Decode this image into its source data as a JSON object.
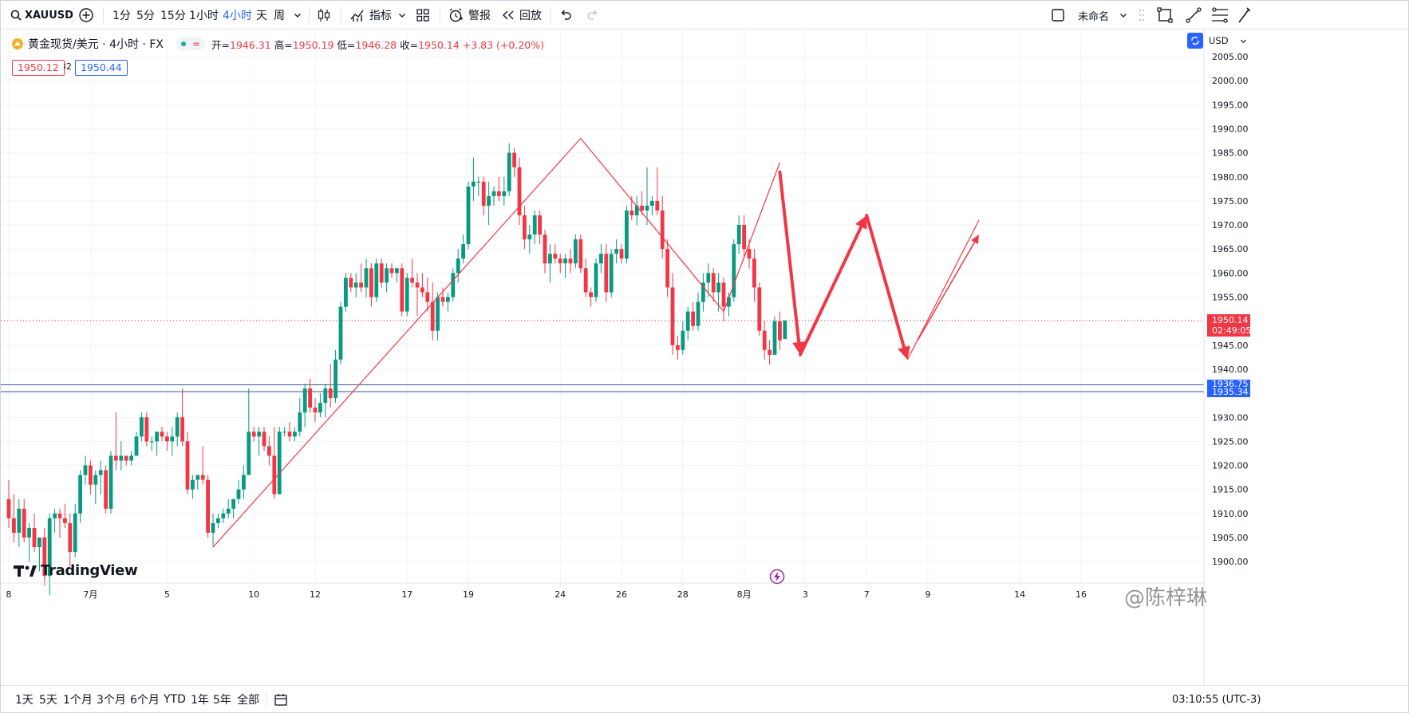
{
  "toolbar": {
    "symbol": "XAUUSD",
    "intervals": [
      "1分",
      "5分",
      "15分",
      "1小时",
      "4小时",
      "天",
      "周"
    ],
    "active_interval": "4小时",
    "indicators_label": "指标",
    "alert_label": "警报",
    "replay_label": "回放",
    "layout_name": "未命名"
  },
  "legend": {
    "title": "黄金现货/美元 · 4小时 · FX",
    "open_label": "开",
    "open": "1946.31",
    "high_label": "高",
    "high": "1950.19",
    "low_label": "低",
    "low": "1946.28",
    "close_label": "收",
    "close": "1950.14",
    "change": "+3.83 (+0.20%)",
    "bid": "1950.12",
    "spread": "32",
    "ask": "1950.44"
  },
  "scale": {
    "currency": "USD",
    "last_price_label": "1950.14",
    "countdown": "02:49:05",
    "hline1_label": "1936.75",
    "hline2_label": "1935.34"
  },
  "bottom": {
    "ranges": [
      "1天",
      "5天",
      "1个月",
      "3个月",
      "6个月",
      "YTD",
      "1年",
      "5年",
      "全部"
    ],
    "clock": "03:10:55 (UTC-3)"
  },
  "branding": {
    "logo_text": "TradingView",
    "author_mark": "@陈梓琳"
  },
  "colors": {
    "up": "#089981",
    "down": "#f23645",
    "accent": "#2962ff",
    "drawing": "#f23645"
  },
  "chart_data": {
    "type": "candlestick",
    "symbol": "XAUUSD",
    "timeframe": "4h",
    "y_ticks": [
      2005,
      2000,
      1995,
      1990,
      1985,
      1980,
      1975,
      1970,
      1965,
      1960,
      1955,
      1950,
      1945,
      1940,
      1935,
      1930,
      1925,
      1920,
      1915,
      1910,
      1905,
      1900
    ],
    "x_ticks": [
      {
        "label": "8",
        "bar": 0
      },
      {
        "label": "7月",
        "bar": 16
      },
      {
        "label": "5",
        "bar": 31
      },
      {
        "label": "10",
        "bar": 48
      },
      {
        "label": "12",
        "bar": 60
      },
      {
        "label": "17",
        "bar": 78
      },
      {
        "label": "19",
        "bar": 90
      },
      {
        "label": "24",
        "bar": 108
      },
      {
        "label": "26",
        "bar": 120
      },
      {
        "label": "28",
        "bar": 132
      },
      {
        "label": "8月",
        "bar": 144
      },
      {
        "label": "3",
        "bar": 156
      },
      {
        "label": "7",
        "bar": 168
      },
      {
        "label": "9",
        "bar": 180
      },
      {
        "label": "14",
        "bar": 198
      },
      {
        "label": "16",
        "bar": 210
      }
    ],
    "candles": [
      {
        "o": 1913.0,
        "h": 1917.0,
        "l": 1907.0,
        "c": 1909.0
      },
      {
        "o": 1909.0,
        "h": 1914.0,
        "l": 1904.0,
        "c": 1906.0
      },
      {
        "o": 1906.0,
        "h": 1913.0,
        "l": 1903.0,
        "c": 1911.0
      },
      {
        "o": 1911.0,
        "h": 1913.0,
        "l": 1904.0,
        "c": 1905.0
      },
      {
        "o": 1905.0,
        "h": 1908.0,
        "l": 1900.0,
        "c": 1907.0
      },
      {
        "o": 1907.0,
        "h": 1910.0,
        "l": 1902.0,
        "c": 1903.0
      },
      {
        "o": 1903.0,
        "h": 1905.0,
        "l": 1898.0,
        "c": 1905.0
      },
      {
        "o": 1905.0,
        "h": 1907.0,
        "l": 1895.0,
        "c": 1897.0
      },
      {
        "o": 1897.0,
        "h": 1910.0,
        "l": 1893.0,
        "c": 1909.0
      },
      {
        "o": 1909.0,
        "h": 1911.0,
        "l": 1906.0,
        "c": 1910.0
      },
      {
        "o": 1910.0,
        "h": 1911.0,
        "l": 1905.0,
        "c": 1909.0
      },
      {
        "o": 1909.0,
        "h": 1912.0,
        "l": 1907.0,
        "c": 1908.0
      },
      {
        "o": 1908.0,
        "h": 1910.0,
        "l": 1899.0,
        "c": 1902.0
      },
      {
        "o": 1902.0,
        "h": 1912.0,
        "l": 1901.0,
        "c": 1910.0
      },
      {
        "o": 1910.0,
        "h": 1919.0,
        "l": 1908.0,
        "c": 1918.0
      },
      {
        "o": 1918.0,
        "h": 1922.0,
        "l": 1916.0,
        "c": 1920.0
      },
      {
        "o": 1920.0,
        "h": 1921.0,
        "l": 1914.0,
        "c": 1916.0
      },
      {
        "o": 1916.0,
        "h": 1919.0,
        "l": 1912.0,
        "c": 1918.0
      },
      {
        "o": 1918.0,
        "h": 1921.0,
        "l": 1914.0,
        "c": 1919.0
      },
      {
        "o": 1919.0,
        "h": 1920.0,
        "l": 1910.0,
        "c": 1911.0
      },
      {
        "o": 1911.0,
        "h": 1923.0,
        "l": 1910.0,
        "c": 1922.0
      },
      {
        "o": 1922.0,
        "h": 1931.0,
        "l": 1919.0,
        "c": 1921.0
      },
      {
        "o": 1921.0,
        "h": 1925.0,
        "l": 1919.0,
        "c": 1922.0
      },
      {
        "o": 1922.0,
        "h": 1922.0,
        "l": 1920.0,
        "c": 1921.0
      },
      {
        "o": 1921.0,
        "h": 1923.0,
        "l": 1920.0,
        "c": 1922.0
      },
      {
        "o": 1922.0,
        "h": 1927.0,
        "l": 1922.0,
        "c": 1926.0
      },
      {
        "o": 1926.0,
        "h": 1931.0,
        "l": 1925.0,
        "c": 1930.0
      },
      {
        "o": 1930.0,
        "h": 1931.0,
        "l": 1924.0,
        "c": 1925.0
      },
      {
        "o": 1925.0,
        "h": 1926.0,
        "l": 1923.0,
        "c": 1925.0
      },
      {
        "o": 1925.0,
        "h": 1927.0,
        "l": 1922.0,
        "c": 1927.0
      },
      {
        "o": 1927.0,
        "h": 1928.0,
        "l": 1925.0,
        "c": 1926.0
      },
      {
        "o": 1926.0,
        "h": 1927.0,
        "l": 1923.0,
        "c": 1925.0
      },
      {
        "o": 1925.0,
        "h": 1928.0,
        "l": 1922.0,
        "c": 1926.0
      },
      {
        "o": 1926.0,
        "h": 1931.0,
        "l": 1924.0,
        "c": 1930.0
      },
      {
        "o": 1930.0,
        "h": 1936.0,
        "l": 1924.0,
        "c": 1925.0
      },
      {
        "o": 1925.0,
        "h": 1927.0,
        "l": 1914.0,
        "c": 1915.0
      },
      {
        "o": 1915.0,
        "h": 1918.0,
        "l": 1913.0,
        "c": 1917.0
      },
      {
        "o": 1917.0,
        "h": 1918.0,
        "l": 1915.0,
        "c": 1918.0
      },
      {
        "o": 1918.0,
        "h": 1924.0,
        "l": 1916.0,
        "c": 1917.0
      },
      {
        "o": 1917.0,
        "h": 1918.0,
        "l": 1905.0,
        "c": 1906.0
      },
      {
        "o": 1906.0,
        "h": 1910.0,
        "l": 1903.0,
        "c": 1908.0
      },
      {
        "o": 1908.0,
        "h": 1910.0,
        "l": 1907.0,
        "c": 1909.0
      },
      {
        "o": 1909.0,
        "h": 1911.0,
        "l": 1908.0,
        "c": 1910.0
      },
      {
        "o": 1910.0,
        "h": 1913.0,
        "l": 1909.0,
        "c": 1911.0
      },
      {
        "o": 1911.0,
        "h": 1913.0,
        "l": 1909.0,
        "c": 1913.0
      },
      {
        "o": 1913.0,
        "h": 1917.0,
        "l": 1912.0,
        "c": 1915.0
      },
      {
        "o": 1915.0,
        "h": 1920.0,
        "l": 1913.0,
        "c": 1918.0
      },
      {
        "o": 1918.0,
        "h": 1936.0,
        "l": 1918.0,
        "c": 1927.0
      },
      {
        "o": 1927.0,
        "h": 1928.0,
        "l": 1925.0,
        "c": 1926.0
      },
      {
        "o": 1926.0,
        "h": 1928.0,
        "l": 1922.0,
        "c": 1927.0
      },
      {
        "o": 1927.0,
        "h": 1928.0,
        "l": 1923.0,
        "c": 1924.0
      },
      {
        "o": 1924.0,
        "h": 1926.0,
        "l": 1920.0,
        "c": 1922.0
      },
      {
        "o": 1922.0,
        "h": 1928.0,
        "l": 1913.0,
        "c": 1914.0
      },
      {
        "o": 1914.0,
        "h": 1928.0,
        "l": 1914.0,
        "c": 1927.0
      },
      {
        "o": 1927.0,
        "h": 1928.0,
        "l": 1926.0,
        "c": 1927.0
      },
      {
        "o": 1927.0,
        "h": 1929.0,
        "l": 1925.0,
        "c": 1926.0
      },
      {
        "o": 1926.0,
        "h": 1928.0,
        "l": 1925.0,
        "c": 1927.0
      },
      {
        "o": 1927.0,
        "h": 1934.0,
        "l": 1926.0,
        "c": 1931.0
      },
      {
        "o": 1931.0,
        "h": 1937.0,
        "l": 1928.0,
        "c": 1936.0
      },
      {
        "o": 1936.0,
        "h": 1938.0,
        "l": 1931.0,
        "c": 1932.0
      },
      {
        "o": 1932.0,
        "h": 1934.0,
        "l": 1929.0,
        "c": 1931.0
      },
      {
        "o": 1931.0,
        "h": 1935.0,
        "l": 1930.0,
        "c": 1933.0
      },
      {
        "o": 1933.0,
        "h": 1937.0,
        "l": 1930.0,
        "c": 1936.0
      },
      {
        "o": 1936.0,
        "h": 1941.0,
        "l": 1932.0,
        "c": 1934.0
      },
      {
        "o": 1934.0,
        "h": 1944.0,
        "l": 1933.0,
        "c": 1942.0
      },
      {
        "o": 1942.0,
        "h": 1954.0,
        "l": 1941.0,
        "c": 1953.0
      },
      {
        "o": 1953.0,
        "h": 1960.0,
        "l": 1952.0,
        "c": 1959.0
      },
      {
        "o": 1959.0,
        "h": 1960.0,
        "l": 1956.0,
        "c": 1957.0
      },
      {
        "o": 1957.0,
        "h": 1960.0,
        "l": 1955.0,
        "c": 1958.0
      },
      {
        "o": 1958.0,
        "h": 1962.0,
        "l": 1956.0,
        "c": 1957.0
      },
      {
        "o": 1957.0,
        "h": 1963.0,
        "l": 1955.0,
        "c": 1961.0
      },
      {
        "o": 1961.0,
        "h": 1962.0,
        "l": 1953.0,
        "c": 1955.0
      },
      {
        "o": 1955.0,
        "h": 1963.0,
        "l": 1954.0,
        "c": 1962.0
      },
      {
        "o": 1962.0,
        "h": 1963.0,
        "l": 1957.0,
        "c": 1958.0
      },
      {
        "o": 1958.0,
        "h": 1962.0,
        "l": 1956.0,
        "c": 1961.0
      },
      {
        "o": 1961.0,
        "h": 1962.0,
        "l": 1959.0,
        "c": 1960.0
      },
      {
        "o": 1960.0,
        "h": 1961.0,
        "l": 1958.0,
        "c": 1961.0
      },
      {
        "o": 1961.0,
        "h": 1962.0,
        "l": 1951.0,
        "c": 1952.0
      },
      {
        "o": 1952.0,
        "h": 1960.0,
        "l": 1951.0,
        "c": 1959.0
      },
      {
        "o": 1959.0,
        "h": 1963.0,
        "l": 1957.0,
        "c": 1958.0
      },
      {
        "o": 1958.0,
        "h": 1960.0,
        "l": 1951.0,
        "c": 1957.0
      },
      {
        "o": 1957.0,
        "h": 1960.0,
        "l": 1955.0,
        "c": 1956.0
      },
      {
        "o": 1956.0,
        "h": 1959.0,
        "l": 1952.0,
        "c": 1954.0
      },
      {
        "o": 1954.0,
        "h": 1958.0,
        "l": 1946.0,
        "c": 1948.0
      },
      {
        "o": 1948.0,
        "h": 1956.0,
        "l": 1946.0,
        "c": 1955.0
      },
      {
        "o": 1955.0,
        "h": 1957.0,
        "l": 1953.0,
        "c": 1954.0
      },
      {
        "o": 1954.0,
        "h": 1956.0,
        "l": 1952.0,
        "c": 1955.0
      },
      {
        "o": 1955.0,
        "h": 1961.0,
        "l": 1954.0,
        "c": 1960.0
      },
      {
        "o": 1960.0,
        "h": 1965.0,
        "l": 1958.0,
        "c": 1963.0
      },
      {
        "o": 1963.0,
        "h": 1968.0,
        "l": 1962.0,
        "c": 1966.0
      },
      {
        "o": 1966.0,
        "h": 1979.0,
        "l": 1965.0,
        "c": 1978.0
      },
      {
        "o": 1978.0,
        "h": 1984.0,
        "l": 1975.0,
        "c": 1979.0
      },
      {
        "o": 1979.0,
        "h": 1980.0,
        "l": 1976.0,
        "c": 1979.0
      },
      {
        "o": 1979.0,
        "h": 1980.0,
        "l": 1972.0,
        "c": 1974.0
      },
      {
        "o": 1974.0,
        "h": 1979.0,
        "l": 1970.0,
        "c": 1976.0
      },
      {
        "o": 1976.0,
        "h": 1978.0,
        "l": 1974.0,
        "c": 1977.0
      },
      {
        "o": 1977.0,
        "h": 1980.0,
        "l": 1975.0,
        "c": 1976.0
      },
      {
        "o": 1976.0,
        "h": 1980.0,
        "l": 1974.0,
        "c": 1977.0
      },
      {
        "o": 1977.0,
        "h": 1987.0,
        "l": 1976.0,
        "c": 1985.0
      },
      {
        "o": 1985.0,
        "h": 1986.0,
        "l": 1980.0,
        "c": 1982.0
      },
      {
        "o": 1982.0,
        "h": 1984.0,
        "l": 1970.0,
        "c": 1972.0
      },
      {
        "o": 1972.0,
        "h": 1974.0,
        "l": 1965.0,
        "c": 1967.0
      },
      {
        "o": 1967.0,
        "h": 1970.0,
        "l": 1964.0,
        "c": 1968.0
      },
      {
        "o": 1968.0,
        "h": 1973.0,
        "l": 1966.0,
        "c": 1972.0
      },
      {
        "o": 1972.0,
        "h": 1973.0,
        "l": 1966.0,
        "c": 1968.0
      },
      {
        "o": 1968.0,
        "h": 1969.0,
        "l": 1960.0,
        "c": 1962.0
      },
      {
        "o": 1962.0,
        "h": 1966.0,
        "l": 1958.0,
        "c": 1964.0
      },
      {
        "o": 1964.0,
        "h": 1966.0,
        "l": 1962.0,
        "c": 1963.0
      },
      {
        "o": 1963.0,
        "h": 1964.0,
        "l": 1960.0,
        "c": 1962.0
      },
      {
        "o": 1962.0,
        "h": 1964.0,
        "l": 1959.0,
        "c": 1963.0
      },
      {
        "o": 1963.0,
        "h": 1965.0,
        "l": 1960.0,
        "c": 1962.0
      },
      {
        "o": 1962.0,
        "h": 1968.0,
        "l": 1961.0,
        "c": 1967.0
      },
      {
        "o": 1967.0,
        "h": 1968.0,
        "l": 1960.0,
        "c": 1961.0
      },
      {
        "o": 1961.0,
        "h": 1963.0,
        "l": 1955.0,
        "c": 1956.0
      },
      {
        "o": 1956.0,
        "h": 1957.0,
        "l": 1953.0,
        "c": 1955.0
      },
      {
        "o": 1955.0,
        "h": 1963.0,
        "l": 1954.0,
        "c": 1962.0
      },
      {
        "o": 1962.0,
        "h": 1966.0,
        "l": 1960.0,
        "c": 1964.0
      },
      {
        "o": 1964.0,
        "h": 1966.0,
        "l": 1954.0,
        "c": 1956.0
      },
      {
        "o": 1956.0,
        "h": 1965.0,
        "l": 1955.0,
        "c": 1964.0
      },
      {
        "o": 1964.0,
        "h": 1967.0,
        "l": 1962.0,
        "c": 1965.0
      },
      {
        "o": 1965.0,
        "h": 1966.0,
        "l": 1962.0,
        "c": 1963.0
      },
      {
        "o": 1963.0,
        "h": 1974.0,
        "l": 1962.0,
        "c": 1973.0
      },
      {
        "o": 1973.0,
        "h": 1976.0,
        "l": 1971.0,
        "c": 1972.0
      },
      {
        "o": 1972.0,
        "h": 1976.0,
        "l": 1970.0,
        "c": 1974.0
      },
      {
        "o": 1974.0,
        "h": 1977.0,
        "l": 1972.0,
        "c": 1973.0
      },
      {
        "o": 1973.0,
        "h": 1982.0,
        "l": 1970.0,
        "c": 1974.0
      },
      {
        "o": 1974.0,
        "h": 1976.0,
        "l": 1972.0,
        "c": 1975.0
      },
      {
        "o": 1975.0,
        "h": 1982.0,
        "l": 1972.0,
        "c": 1973.0
      },
      {
        "o": 1973.0,
        "h": 1976.0,
        "l": 1963.0,
        "c": 1965.0
      },
      {
        "o": 1965.0,
        "h": 1967.0,
        "l": 1955.0,
        "c": 1957.0
      },
      {
        "o": 1957.0,
        "h": 1960.0,
        "l": 1943.0,
        "c": 1945.0
      },
      {
        "o": 1945.0,
        "h": 1947.0,
        "l": 1942.0,
        "c": 1944.0
      },
      {
        "o": 1944.0,
        "h": 1950.0,
        "l": 1943.0,
        "c": 1948.0
      },
      {
        "o": 1948.0,
        "h": 1953.0,
        "l": 1946.0,
        "c": 1952.0
      },
      {
        "o": 1952.0,
        "h": 1954.0,
        "l": 1948.0,
        "c": 1949.0
      },
      {
        "o": 1949.0,
        "h": 1956.0,
        "l": 1948.0,
        "c": 1954.0
      },
      {
        "o": 1954.0,
        "h": 1960.0,
        "l": 1952.0,
        "c": 1958.0
      },
      {
        "o": 1958.0,
        "h": 1962.0,
        "l": 1955.0,
        "c": 1960.0
      },
      {
        "o": 1960.0,
        "h": 1961.0,
        "l": 1954.0,
        "c": 1956.0
      },
      {
        "o": 1956.0,
        "h": 1960.0,
        "l": 1952.0,
        "c": 1958.0
      },
      {
        "o": 1958.0,
        "h": 1959.0,
        "l": 1950.0,
        "c": 1953.0
      },
      {
        "o": 1953.0,
        "h": 1956.0,
        "l": 1951.0,
        "c": 1955.0
      },
      {
        "o": 1955.0,
        "h": 1967.0,
        "l": 1954.0,
        "c": 1966.0
      },
      {
        "o": 1966.0,
        "h": 1972.0,
        "l": 1964.0,
        "c": 1970.0
      },
      {
        "o": 1970.0,
        "h": 1972.0,
        "l": 1963.0,
        "c": 1965.0
      },
      {
        "o": 1965.0,
        "h": 1967.0,
        "l": 1961.0,
        "c": 1963.0
      },
      {
        "o": 1963.0,
        "h": 1965.0,
        "l": 1954.0,
        "c": 1957.0
      },
      {
        "o": 1957.0,
        "h": 1958.0,
        "l": 1947.0,
        "c": 1948.0
      },
      {
        "o": 1948.0,
        "h": 1950.0,
        "l": 1942.0,
        "c": 1944.0
      },
      {
        "o": 1944.0,
        "h": 1946.0,
        "l": 1941.0,
        "c": 1943.0
      },
      {
        "o": 1943.0,
        "h": 1951.0,
        "l": 1943.0,
        "c": 1950.0
      },
      {
        "o": 1950.0,
        "h": 1952.0,
        "l": 1944.0,
        "c": 1946.0
      },
      {
        "o": 1946.31,
        "h": 1950.19,
        "l": 1946.28,
        "c": 1950.14
      }
    ],
    "horizontal_lines": [
      1936.75,
      1935.34
    ],
    "last_price": 1950.14,
    "trendlines": [
      [
        {
          "bar": 40,
          "price": 1903
        },
        {
          "bar": 112,
          "price": 1988
        },
        {
          "bar": 140,
          "price": 1952
        },
        {
          "bar": 151,
          "price": 1983
        }
      ],
      [
        {
          "bar": 176,
          "price": 1942
        },
        {
          "bar": 190,
          "price": 1971
        }
      ]
    ],
    "arrows": [
      {
        "from": {
          "bar": 151,
          "price": 1981
        },
        "to": {
          "bar": 155,
          "price": 1943
        }
      },
      {
        "from": {
          "bar": 155,
          "price": 1943
        },
        "to": {
          "bar": 168,
          "price": 1972
        }
      },
      {
        "from": {
          "bar": 168,
          "price": 1972
        },
        "to": {
          "bar": 176,
          "price": 1942
        }
      },
      {
        "from": {
          "bar": 178,
          "price": 1946
        },
        "to": {
          "bar": 190,
          "price": 1968
        }
      }
    ]
  }
}
